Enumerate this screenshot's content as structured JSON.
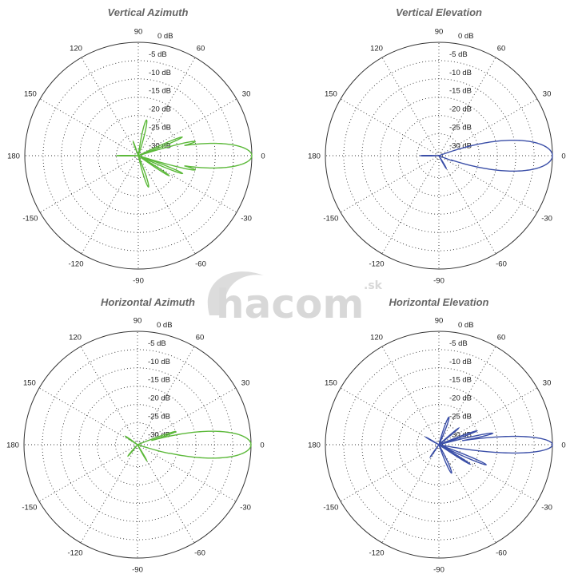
{
  "watermark": {
    "logo_text": "hacom",
    "suffix": ".sk"
  },
  "chart_data": [
    {
      "type": "polar-line",
      "title": "Vertical Azimuth",
      "color": "#5cb93a",
      "radial_range_db": [
        -31,
        0
      ],
      "radial_ticks": [
        "0 dB",
        "-5 dB",
        "-10 dB",
        "-15 dB",
        "-20 dB",
        "-25 dB",
        "-30 dB"
      ],
      "angle_ticks": [
        "0",
        "30",
        "60",
        "90",
        "120",
        "150",
        "180",
        "-150",
        "-120",
        "-90",
        "-60",
        "-30"
      ],
      "lobes": [
        {
          "angle": 0,
          "peak_db": 0,
          "width_deg": 8.6
        },
        {
          "angle": 14,
          "peak_db": -15,
          "width_deg": 2.5
        },
        {
          "angle": 23,
          "peak_db": -18,
          "width_deg": 2.5
        },
        {
          "angle": -14,
          "peak_db": -15,
          "width_deg": 2.5
        },
        {
          "angle": -22,
          "peak_db": -18,
          "width_deg": 2.5
        },
        {
          "angle": -33,
          "peak_db": -21,
          "width_deg": 2.5
        },
        {
          "angle": 77,
          "peak_db": -21,
          "width_deg": 5
        },
        {
          "angle": -72,
          "peak_db": -22,
          "width_deg": 5
        },
        {
          "angle": 180,
          "peak_db": -25,
          "width_deg": 2
        },
        {
          "angle": 110,
          "peak_db": -27,
          "width_deg": 3
        }
      ]
    },
    {
      "type": "polar-line",
      "title": "Vertical Elevation",
      "color": "#3b4fa8",
      "radial_range_db": [
        -31,
        0
      ],
      "radial_ticks": [
        "0 dB",
        "-5 dB",
        "-10 dB",
        "-15 dB",
        "-20 dB",
        "-25 dB",
        "-30 dB"
      ],
      "angle_ticks": [
        "0",
        "30",
        "60",
        "90",
        "120",
        "150",
        "180",
        "-150",
        "-120",
        "-90",
        "-60",
        "-30"
      ],
      "lobes": [
        {
          "angle": 0,
          "peak_db": 0,
          "width_deg": 10.8
        },
        {
          "angle": 180,
          "peak_db": -26,
          "width_deg": 3
        },
        {
          "angle": -60,
          "peak_db": -27,
          "width_deg": 4
        },
        {
          "angle": -20,
          "peak_db": -27,
          "width_deg": 3
        }
      ]
    },
    {
      "type": "polar-line",
      "title": "Horizontal Azimuth",
      "color": "#5cb93a",
      "radial_range_db": [
        -31,
        0
      ],
      "radial_ticks": [
        "0 dB",
        "-5 dB",
        "-10 dB",
        "-15 dB",
        "-20 dB",
        "-25 dB",
        "-30 dB"
      ],
      "angle_ticks": [
        "0",
        "30",
        "60",
        "90",
        "120",
        "150",
        "180",
        "-150",
        "-120",
        "-90",
        "-60",
        "-30"
      ],
      "lobes": [
        {
          "angle": 0,
          "peak_db": 0,
          "width_deg": 9.4
        },
        {
          "angle": 19,
          "peak_db": -20,
          "width_deg": 2.5
        },
        {
          "angle": -15,
          "peak_db": -22,
          "width_deg": 2.5
        },
        {
          "angle": 145,
          "peak_db": -27,
          "width_deg": 4
        },
        {
          "angle": -130,
          "peak_db": -27,
          "width_deg": 4
        },
        {
          "angle": -60,
          "peak_db": -26,
          "width_deg": 3
        }
      ]
    },
    {
      "type": "polar-line",
      "title": "Horizontal Elevation",
      "color": "#3b4fa8",
      "radial_range_db": [
        -31,
        0
      ],
      "radial_ticks": [
        "0 dB",
        "-5 dB",
        "-10 dB",
        "-15 dB",
        "-20 dB",
        "-25 dB",
        "-30 dB"
      ],
      "angle_ticks": [
        "0",
        "30",
        "60",
        "90",
        "120",
        "150",
        "180",
        "-150",
        "-120",
        "-90",
        "-60",
        "-30"
      ],
      "lobes": [
        {
          "angle": 0,
          "peak_db": 0,
          "width_deg": 5.8
        },
        {
          "angle": 12,
          "peak_db": -16,
          "width_deg": 2.2
        },
        {
          "angle": 20,
          "peak_db": -20,
          "width_deg": 2.2
        },
        {
          "angle": 70,
          "peak_db": -23,
          "width_deg": 5
        },
        {
          "angle": -66,
          "peak_db": -22.5,
          "width_deg": 5
        },
        {
          "angle": -23,
          "peak_db": -17,
          "width_deg": 2.5
        },
        {
          "angle": -32,
          "peak_db": -21,
          "width_deg": 2.2
        },
        {
          "angle": 150,
          "peak_db": -27,
          "width_deg": 3
        },
        {
          "angle": -125,
          "peak_db": -27,
          "width_deg": 3
        },
        {
          "angle": 40,
          "peak_db": -24,
          "width_deg": 2.5
        }
      ]
    }
  ]
}
